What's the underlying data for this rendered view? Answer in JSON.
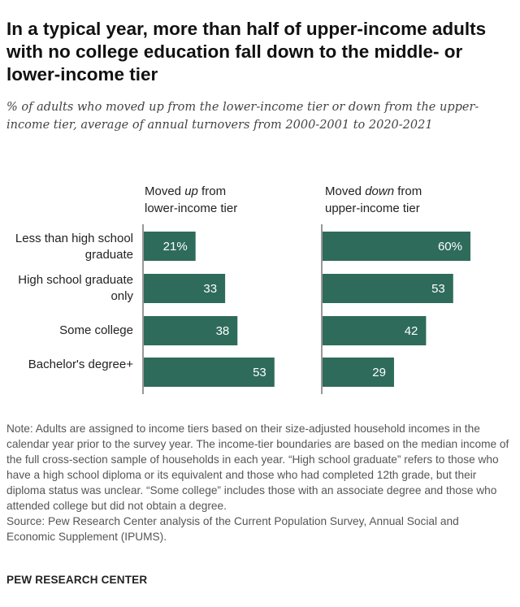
{
  "header": {
    "title": "In a typical year, more than half of upper-income adults with no college education fall down to the middle- or lower-income tier",
    "subtitle": "% of adults who moved up from the lower-income tier or down from the upper-income tier, average of annual turnovers from 2000-2001 to 2020-2021"
  },
  "panels": {
    "up": {
      "pre": "Moved ",
      "em": "up",
      "post": " from",
      "line2": "lower-income tier"
    },
    "down": {
      "pre": "Moved ",
      "em": "down",
      "post": " from",
      "line2": "upper-income tier"
    }
  },
  "categories": {
    "c0": "Less than high school graduate",
    "c1": "High school graduate only",
    "c2": "Some college",
    "c3": "Bachelor's degree+"
  },
  "chart_data": {
    "type": "bar",
    "orientation": "horizontal",
    "categories": [
      "Less than high school graduate",
      "High school graduate only",
      "Some college",
      "Bachelor's degree+"
    ],
    "series": [
      {
        "name": "Moved up from lower-income tier",
        "values": [
          21,
          33,
          38,
          53
        ]
      },
      {
        "name": "Moved down from upper-income tier",
        "values": [
          60,
          53,
          42,
          29
        ]
      }
    ],
    "labels": [
      [
        "21%",
        "33",
        "38",
        "53"
      ],
      [
        "60%",
        "53",
        "42",
        "29"
      ]
    ],
    "bar_color": "#2e6b5a",
    "label_color": "#ffffff",
    "axis_color": "#777777",
    "xlim": [
      0,
      60
    ],
    "grid": false
  },
  "notes": {
    "note": "Note: Adults are assigned to income tiers based on their size-adjusted household incomes in the calendar year prior to the survey year. The income-tier boundaries are based on the median income of the full cross-section sample of households in each year. “High school graduate” refers to those who have a high school diploma or its equivalent and those who had completed 12th grade, but their diploma status was unclear. “Some college” includes those with an associate degree and those who attended college but did not obtain a degree.",
    "source": "Source: Pew Research Center analysis of the Current Population Survey, Annual Social and Economic Supplement (IPUMS)."
  },
  "footer": {
    "brand": "PEW RESEARCH CENTER"
  }
}
